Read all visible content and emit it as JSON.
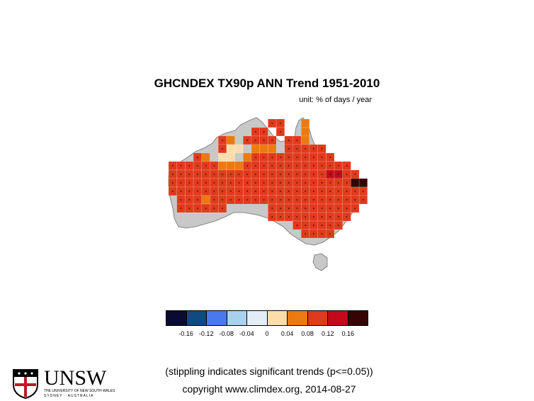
{
  "title": "GHCNDEX TX90p ANN Trend 1951-2010",
  "unit": "unit: % of days / year",
  "legend": {
    "ticks": [
      "-0.16",
      "-0.12",
      "-0.08",
      "-0.04",
      "0",
      "0.04",
      "0.08",
      "0.12",
      "0.16"
    ],
    "colors": [
      "#0a0a33",
      "#114a82",
      "#4a78f0",
      "#a8d2ec",
      "#e4ecf8",
      "#fddcac",
      "#ec7a10",
      "#e03a1c",
      "#c40a1a",
      "#360404"
    ]
  },
  "note": "(stippling indicates significant trends (p<=0.05))",
  "copyright": "copyright www.climdex.org, 2014-08-27",
  "logo": {
    "name": "UNSW",
    "line1": "THE UNIVERSITY OF NEW SOUTH WALES",
    "line2": "SYDNEY · AUSTRALIA"
  },
  "colors": {
    "land": "#c8c8c8",
    "coast": "#6e6e6e"
  },
  "chart_data": {
    "type": "heatmap",
    "grid_rows": [
      "............rr..o..........",
      "..........rr.r..o..........",
      "......ro.rrrr.rro..........",
      "......rpp.ooo.rrrrr........",
      "...ro.pp.orrrrrrrrrr.......",
      "rrrrrrooorrrrrrrrrrrrr.....",
      "rrrrrrrrrrrrrrrrrrrDDrr....",
      "rrrrrrrrrrrrrrrrrrrrrrKK...",
      "rrrrrrrrrrrrrrrrrrrrrrrr...",
      ".rrrorrrrrrrrrrrrrrrrrrr...",
      ".rrrrrr.....rrrrrrrrrrr....",
      "............rrrrrrrrrr.....",
      "...............rrrrrr......",
      "................rrrr......."
    ],
    "class_colors": {
      "p": "#fddcac",
      "o": "#ec7a10",
      "r": "#e03a1c",
      "D": "#c40a1a",
      "K": "#360404"
    },
    "class_ranges": {
      "p": "0 to 0.04",
      "o": "0.04 to 0.08",
      "r": "0.08 to 0.12",
      "D": "0.12 to 0.16",
      "K": "> 0.16"
    },
    "stippled_all_land_cells": true
  }
}
